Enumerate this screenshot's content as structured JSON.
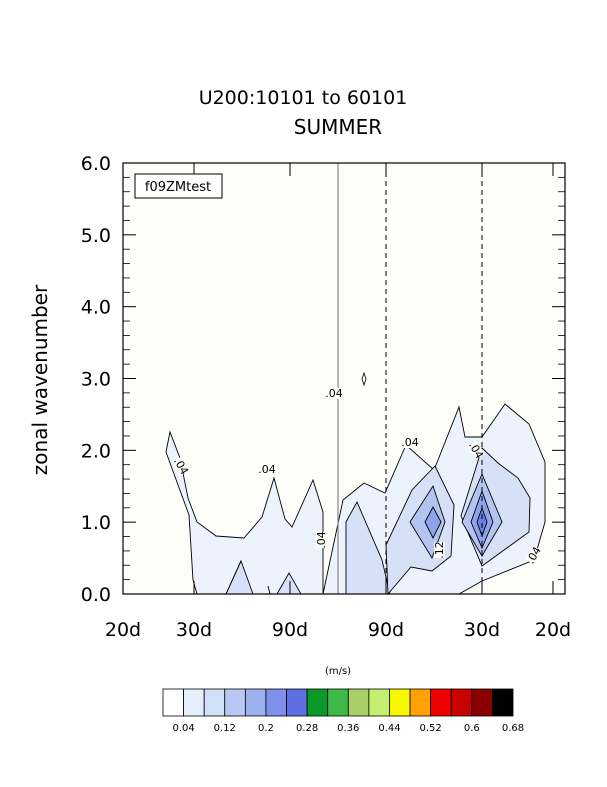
{
  "chart_data": {
    "type": "contour",
    "title": "U200:10101 to 60101",
    "subtitle": "SUMMER",
    "case_label": "f09ZMtest",
    "ylabel": "zonal wavenumber",
    "ylim": [
      0.0,
      6.0
    ],
    "yticks": [
      "0.0",
      "1.0",
      "2.0",
      "3.0",
      "4.0",
      "5.0",
      "6.0"
    ],
    "xticks": [
      "20d",
      "30d",
      "90d",
      "90d",
      "30d",
      "20d"
    ],
    "units": "(m/s)",
    "contour_labels": [
      ".04",
      ".04",
      ".04",
      ".04",
      ".04",
      ".04",
      ".12",
      ".04"
    ],
    "colorbar": {
      "labels": [
        "0.04",
        "0.12",
        "0.2",
        "0.28",
        "0.36",
        "0.44",
        "0.52",
        "0.6",
        "0.68"
      ],
      "colors": [
        "#ffffff",
        "#e6f0fb",
        "#d3dff6",
        "#b9c8f2",
        "#9cb0ee",
        "#7e90ea",
        "#5f6ee0",
        "#0a9a28",
        "#3fb84a",
        "#a9cf6a",
        "#c3f06e",
        "#f7f700",
        "#ffa100",
        "#ef0000",
        "#c80000",
        "#8a0000",
        "#000000"
      ]
    }
  }
}
